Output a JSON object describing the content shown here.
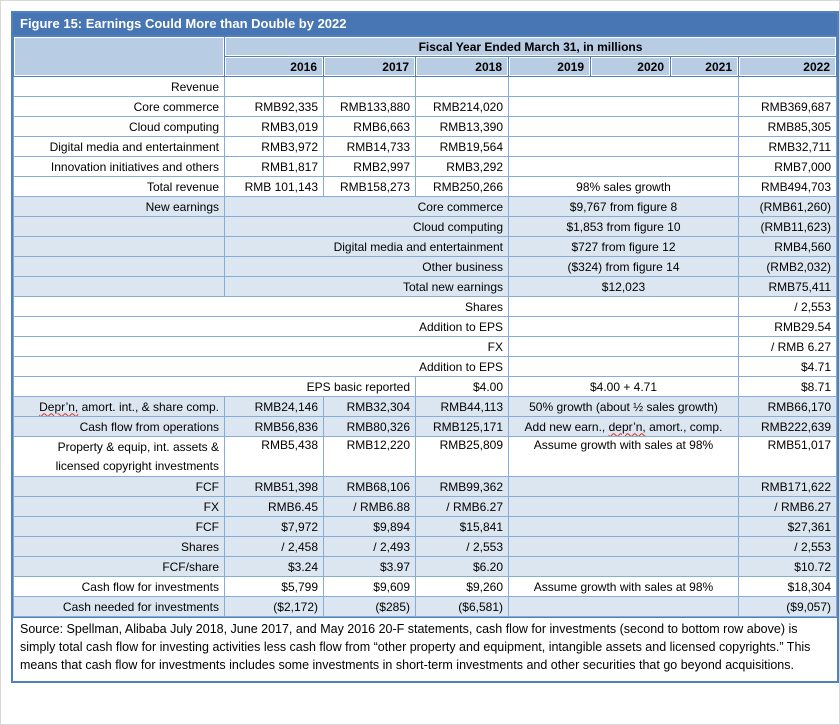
{
  "title": "Figure 15: Earnings Could More than Double by 2022",
  "colors": {
    "title_bg": "#4876B4",
    "header_bg": "#B8CCE4",
    "pale_row_bg": "#DCE6F1",
    "grid_line": "#86ACD7",
    "accent_border": "#4F81BD",
    "spellcheck_red": "#d93025",
    "title_text": "#ffffff"
  },
  "table": {
    "fiscal_header": "Fiscal Year Ended March 31, in millions",
    "year_columns": [
      "2016",
      "2017",
      "2018",
      "2019",
      "2020",
      "2021",
      "2022"
    ],
    "rows": [
      {
        "type": "std",
        "bg": "white",
        "label": "Revenue",
        "y2016": "",
        "y2017": "",
        "y2018": "",
        "mid": "",
        "y2022": ""
      },
      {
        "type": "std",
        "bg": "white",
        "label": "Core commerce",
        "y2016": "RMB92,335",
        "y2017": "RMB133,880",
        "y2018": "RMB214,020",
        "mid": "",
        "y2022": "RMB369,687"
      },
      {
        "type": "std",
        "bg": "white",
        "label": "Cloud computing",
        "y2016": "RMB3,019",
        "y2017": "RMB6,663",
        "y2018": "RMB13,390",
        "mid": "",
        "y2022": "RMB85,305"
      },
      {
        "type": "std",
        "bg": "white",
        "label": "Digital media and entertainment",
        "y2016": "RMB3,972",
        "y2017": "RMB14,733",
        "y2018": "RMB19,564",
        "mid": "",
        "y2022": "RMB32,711"
      },
      {
        "type": "std",
        "bg": "white",
        "label": "Innovation initiatives and others",
        "y2016": "RMB1,817",
        "y2017": "RMB2,997",
        "y2018": "RMB3,292",
        "mid": "",
        "y2022": "RMB7,000"
      },
      {
        "type": "std",
        "bg": "white",
        "label": "Total revenue",
        "y2016": "RMB 101,143",
        "y2017": "RMB158,273",
        "y2018": "RMB250,266",
        "mid": "98% sales growth",
        "y2022": "RMB494,703"
      },
      {
        "type": "newearn",
        "bg": "pale",
        "label": "New earnings",
        "sub": "Core commerce",
        "mid": "$9,767 from figure 8",
        "y2022": "(RMB61,260)"
      },
      {
        "type": "newearn",
        "bg": "pale",
        "label": "",
        "sub": "Cloud computing",
        "mid": "$1,853 from figure 10",
        "y2022": "(RMB11,623)"
      },
      {
        "type": "newearn",
        "bg": "pale",
        "label": "",
        "sub": "Digital media and entertainment",
        "mid": "$727 from figure 12",
        "y2022": "RMB4,560"
      },
      {
        "type": "newearn",
        "bg": "pale",
        "label": "",
        "sub": "Other business",
        "mid": "($324) from figure 14",
        "y2022": "(RMB2,032)"
      },
      {
        "type": "newearn",
        "bg": "pale",
        "label": "",
        "sub": "Total new earnings",
        "mid": "$12,023",
        "y2022": "RMB75,411"
      },
      {
        "type": "wide4",
        "bg": "white",
        "label": "Shares",
        "mid": "",
        "y2022": "/ 2,553"
      },
      {
        "type": "wide4",
        "bg": "white",
        "label": "Addition to EPS",
        "mid": "",
        "y2022": "RMB29.54"
      },
      {
        "type": "wide4",
        "bg": "white",
        "label": "FX",
        "mid": "",
        "y2022": "/ RMB 6.27"
      },
      {
        "type": "wide4",
        "bg": "white",
        "label": "Addition to EPS",
        "mid": "",
        "y2022": "$4.71"
      },
      {
        "type": "eps",
        "bg": "white",
        "label": "EPS basic reported",
        "y2018": "$4.00",
        "mid": "$4.00 + 4.71",
        "y2022": "$8.71"
      },
      {
        "type": "std",
        "bg": "pale",
        "label": "Depr’n, amort. int., & share comp.",
        "label_mark": "Depr’n,",
        "y2016": "RMB24,146",
        "y2017": "RMB32,304",
        "y2018": "RMB44,113",
        "mid": "50% growth (about ½ sales growth)",
        "y2022": "RMB66,170"
      },
      {
        "type": "std",
        "bg": "pale",
        "label": "Cash flow from operations",
        "y2016": "RMB56,836",
        "y2017": "RMB80,326",
        "y2018": "RMB125,171",
        "mid": "Add new earn., depr’n, amort., comp.",
        "mid_mark": "depr’n,",
        "y2022": "RMB222,639"
      },
      {
        "type": "std",
        "bg": "white",
        "tall": true,
        "label": "Property & equip, int. assets & licensed copyright investments",
        "y2016": "RMB5,438",
        "y2017": "RMB12,220",
        "y2018": "RMB25,809",
        "mid": "Assume growth with sales at 98%",
        "y2022": "RMB51,017"
      },
      {
        "type": "std",
        "bg": "pale",
        "label": "FCF",
        "y2016": "RMB51,398",
        "y2017": "RMB68,106",
        "y2018": "RMB99,362",
        "mid": "",
        "y2022": "RMB171,622"
      },
      {
        "type": "std",
        "bg": "pale",
        "label": "FX",
        "y2016": "RMB6.45",
        "y2017": "/ RMB6.88",
        "y2018": "/ RMB6.27",
        "mid": "",
        "y2022": "/ RMB6.27"
      },
      {
        "type": "std",
        "bg": "pale",
        "label": "FCF",
        "y2016": "$7,972",
        "y2017": "$9,894",
        "y2018": "$15,841",
        "mid": "",
        "y2022": "$27,361"
      },
      {
        "type": "std",
        "bg": "pale",
        "label": "Shares",
        "y2016": "/ 2,458",
        "y2017": "/ 2,493",
        "y2018": "/ 2,553",
        "mid": "",
        "y2022": "/ 2,553"
      },
      {
        "type": "std",
        "bg": "pale",
        "label": "FCF/share",
        "y2016": "$3.24",
        "y2017": "$3.97",
        "y2018": "$6.20",
        "mid": "",
        "y2022": "$10.72"
      },
      {
        "type": "std",
        "bg": "white",
        "label": "Cash flow for investments",
        "y2016": "$5,799",
        "y2017": "$9,609",
        "y2018": "$9,260",
        "mid": "Assume growth with sales at 98%",
        "y2022": "$18,304"
      },
      {
        "type": "std",
        "bg": "pale",
        "label": "Cash needed for investments",
        "y2016": "($2,172)",
        "y2017": "($285)",
        "y2018": "($6,581)",
        "mid": "",
        "y2022": "($9,057)"
      }
    ]
  },
  "footer": "Source: Spellman, Alibaba July 2018, June 2017, and May 2016 20-F statements, cash flow for investments (second to bottom row above) is simply total cash flow for investing activities less cash flow from “other property and equipment, intangible assets and licensed copyrights.” This means that cash flow for investments includes some investments in short-term investments and other securities that go beyond acquisitions."
}
